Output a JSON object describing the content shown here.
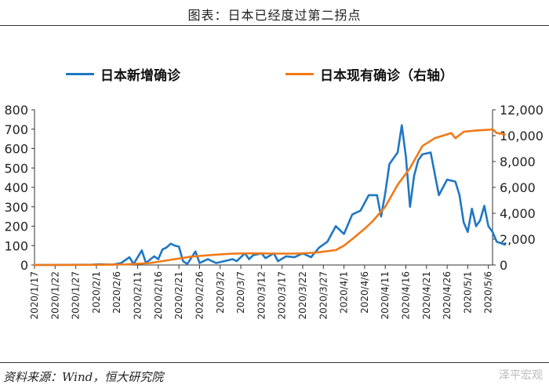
{
  "header": {
    "title": "图表：日本已经度过第二拐点"
  },
  "footer": {
    "source": "资料来源：Wind，恒大研究院",
    "watermark": "泽平宏观"
  },
  "colors": {
    "left_series": "#1f77c4",
    "right_series": "#f07a18",
    "axis": "#333333"
  },
  "chart_data": {
    "type": "line",
    "x_ticks": [
      "2020/1/17",
      "2020/1/22",
      "2020/1/27",
      "2020/2/1",
      "2020/2/6",
      "2020/2/11",
      "2020/2/16",
      "2020/2/21",
      "2020/2/26",
      "2020/3/2",
      "2020/3/7",
      "2020/3/12",
      "2020/3/17",
      "2020/3/22",
      "2020/3/27",
      "2020/4/1",
      "2020/4/6",
      "2020/4/11",
      "2020/4/16",
      "2020/4/21",
      "2020/4/26",
      "2020/5/1",
      "2020/5/6"
    ],
    "x_range": [
      "2020/1/17",
      "2020/5/7"
    ],
    "y_left": {
      "min": 0,
      "max": 800,
      "ticks": [
        "0",
        "100",
        "200",
        "300",
        "400",
        "500",
        "600",
        "700",
        "800"
      ]
    },
    "y_right": {
      "min": 0,
      "max": 12000,
      "ticks": [
        "0",
        "2,000",
        "4,000",
        "6,000",
        "8,000",
        "10,000",
        "12,000"
      ]
    },
    "legend_position": "top",
    "grid": false,
    "series": [
      {
        "name": "日本新增确诊",
        "axis": "left",
        "points": [
          [
            "2020/1/17",
            0
          ],
          [
            "2020/1/25",
            1
          ],
          [
            "2020/1/31",
            2
          ],
          [
            "2020/2/2",
            4
          ],
          [
            "2020/2/5",
            2
          ],
          [
            "2020/2/7",
            10
          ],
          [
            "2020/2/9",
            40
          ],
          [
            "2020/2/10",
            5
          ],
          [
            "2020/2/12",
            75
          ],
          [
            "2020/2/13",
            10
          ],
          [
            "2020/2/15",
            45
          ],
          [
            "2020/2/16",
            30
          ],
          [
            "2020/2/17",
            80
          ],
          [
            "2020/2/18",
            90
          ],
          [
            "2020/2/19",
            110
          ],
          [
            "2020/2/20",
            100
          ],
          [
            "2020/2/21",
            95
          ],
          [
            "2020/2/22",
            20
          ],
          [
            "2020/2/23",
            5
          ],
          [
            "2020/2/25",
            70
          ],
          [
            "2020/2/26",
            10
          ],
          [
            "2020/2/28",
            30
          ],
          [
            "2020/3/1",
            10
          ],
          [
            "2020/3/3",
            20
          ],
          [
            "2020/3/5",
            30
          ],
          [
            "2020/3/6",
            20
          ],
          [
            "2020/3/8",
            60
          ],
          [
            "2020/3/9",
            30
          ],
          [
            "2020/3/10",
            50
          ],
          [
            "2020/3/12",
            60
          ],
          [
            "2020/3/13",
            35
          ],
          [
            "2020/3/15",
            60
          ],
          [
            "2020/3/16",
            20
          ],
          [
            "2020/3/18",
            45
          ],
          [
            "2020/3/20",
            40
          ],
          [
            "2020/3/22",
            60
          ],
          [
            "2020/3/24",
            40
          ],
          [
            "2020/3/26",
            90
          ],
          [
            "2020/3/28",
            120
          ],
          [
            "2020/3/30",
            200
          ],
          [
            "2020/4/1",
            160
          ],
          [
            "2020/4/3",
            260
          ],
          [
            "2020/4/5",
            280
          ],
          [
            "2020/4/7",
            360
          ],
          [
            "2020/4/9",
            360
          ],
          [
            "2020/4/10",
            250
          ],
          [
            "2020/4/11",
            370
          ],
          [
            "2020/4/12",
            520
          ],
          [
            "2020/4/14",
            580
          ],
          [
            "2020/4/15",
            720
          ],
          [
            "2020/4/16",
            560
          ],
          [
            "2020/4/17",
            300
          ],
          [
            "2020/4/18",
            460
          ],
          [
            "2020/4/19",
            540
          ],
          [
            "2020/4/20",
            570
          ],
          [
            "2020/4/22",
            580
          ],
          [
            "2020/4/24",
            360
          ],
          [
            "2020/4/26",
            440
          ],
          [
            "2020/4/28",
            430
          ],
          [
            "2020/4/29",
            360
          ],
          [
            "2020/4/30",
            220
          ],
          [
            "2020/5/1",
            170
          ],
          [
            "2020/5/2",
            290
          ],
          [
            "2020/5/3",
            200
          ],
          [
            "2020/5/4",
            230
          ],
          [
            "2020/5/5",
            305
          ],
          [
            "2020/5/6",
            200
          ],
          [
            "2020/5/7",
            170
          ],
          [
            "2020/5/8",
            120
          ],
          [
            "2020/5/10",
            105
          ]
        ]
      },
      {
        "name": "日本现有确诊（右轴）",
        "axis": "right",
        "points": [
          [
            "2020/1/17",
            0
          ],
          [
            "2020/1/31",
            10
          ],
          [
            "2020/2/8",
            40
          ],
          [
            "2020/2/14",
            150
          ],
          [
            "2020/2/19",
            400
          ],
          [
            "2020/2/24",
            650
          ],
          [
            "2020/3/1",
            800
          ],
          [
            "2020/3/5",
            880
          ],
          [
            "2020/3/10",
            900
          ],
          [
            "2020/3/15",
            880
          ],
          [
            "2020/3/20",
            880
          ],
          [
            "2020/3/25",
            950
          ],
          [
            "2020/3/30",
            1150
          ],
          [
            "2020/4/1",
            1500
          ],
          [
            "2020/4/3",
            2000
          ],
          [
            "2020/4/6",
            2800
          ],
          [
            "2020/4/8",
            3400
          ],
          [
            "2020/4/11",
            4500
          ],
          [
            "2020/4/14",
            6200
          ],
          [
            "2020/4/17",
            7500
          ],
          [
            "2020/4/20",
            9200
          ],
          [
            "2020/4/23",
            9800
          ],
          [
            "2020/4/27",
            10200
          ],
          [
            "2020/4/28",
            9800
          ],
          [
            "2020/4/30",
            10300
          ],
          [
            "2020/5/3",
            10400
          ],
          [
            "2020/5/6",
            10450
          ],
          [
            "2020/5/7",
            10500
          ],
          [
            "2020/5/8",
            10200
          ],
          [
            "2020/5/10",
            10100
          ]
        ]
      }
    ]
  }
}
